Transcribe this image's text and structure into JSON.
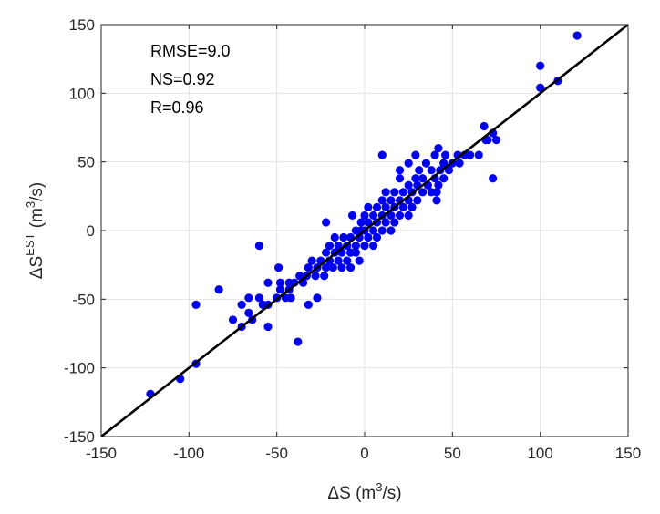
{
  "chart_data": {
    "type": "scatter",
    "title": "",
    "xlabel": {
      "base": "ΔS",
      "units_pre": "(m",
      "units_sup": "3",
      "units_post": "/s)"
    },
    "ylabel": {
      "base": "ΔS",
      "sup": "EST",
      "units_pre": "(m",
      "units_sup": "3",
      "units_post": "/s)"
    },
    "xlim": [
      -150,
      150
    ],
    "ylim": [
      -150,
      150
    ],
    "xticks": [
      -150,
      -100,
      -50,
      0,
      50,
      100,
      150
    ],
    "yticks": [
      -150,
      -100,
      -50,
      0,
      50,
      100,
      150
    ],
    "grid": true,
    "colors": {
      "points": "#0000ee",
      "line": "#000000",
      "grid": "#e2e2e2",
      "axes": "#262626"
    },
    "reference_line": {
      "name": "1:1 line",
      "from": [
        -150,
        -150
      ],
      "to": [
        150,
        150
      ]
    },
    "annotations": [
      "RMSE=9.0",
      "NS=0.92",
      "R=0.96"
    ],
    "points": [
      [
        -122,
        -119
      ],
      [
        -105,
        -108
      ],
      [
        -96,
        -97
      ],
      [
        -96,
        -54
      ],
      [
        -83,
        -43
      ],
      [
        -75,
        -65
      ],
      [
        -70,
        -70
      ],
      [
        -70,
        -54
      ],
      [
        -66,
        -60
      ],
      [
        -66,
        -49
      ],
      [
        -64,
        -65
      ],
      [
        -60,
        -11
      ],
      [
        -60,
        -49
      ],
      [
        -58,
        -54
      ],
      [
        -55,
        -70
      ],
      [
        -55,
        -54
      ],
      [
        -55,
        -38
      ],
      [
        -50,
        -49
      ],
      [
        -49,
        -27
      ],
      [
        -48,
        -43
      ],
      [
        -48,
        -38
      ],
      [
        -45,
        -49
      ],
      [
        -43,
        -43
      ],
      [
        -43,
        -38
      ],
      [
        -42,
        -49
      ],
      [
        -40,
        -38
      ],
      [
        -38,
        -81
      ],
      [
        -37,
        -33
      ],
      [
        -35,
        -38
      ],
      [
        -33,
        -33
      ],
      [
        -32,
        -54
      ],
      [
        -32,
        -27
      ],
      [
        -30,
        -22
      ],
      [
        -28,
        -33
      ],
      [
        -27,
        -49
      ],
      [
        -27,
        -27
      ],
      [
        -25,
        -22
      ],
      [
        -23,
        -33
      ],
      [
        -22,
        6
      ],
      [
        -22,
        -27
      ],
      [
        -22,
        -16
      ],
      [
        -20,
        -22
      ],
      [
        -20,
        -11
      ],
      [
        -18,
        -27
      ],
      [
        -17,
        -16
      ],
      [
        -17,
        -5
      ],
      [
        -15,
        -22
      ],
      [
        -15,
        -11
      ],
      [
        -13,
        -27
      ],
      [
        -13,
        -16
      ],
      [
        -12,
        -5
      ],
      [
        -10,
        -22
      ],
      [
        -10,
        -11
      ],
      [
        -8,
        -27
      ],
      [
        -8,
        -16
      ],
      [
        -8,
        -5
      ],
      [
        -7,
        11
      ],
      [
        -5,
        -16
      ],
      [
        -5,
        -11
      ],
      [
        -5,
        0
      ],
      [
        -3,
        -22
      ],
      [
        -3,
        -5
      ],
      [
        -2,
        0
      ],
      [
        -2,
        6
      ],
      [
        0,
        -11
      ],
      [
        0,
        0
      ],
      [
        0,
        11
      ],
      [
        2,
        -5
      ],
      [
        2,
        6
      ],
      [
        2,
        17
      ],
      [
        5,
        -11
      ],
      [
        5,
        0
      ],
      [
        5,
        11
      ],
      [
        7,
        -5
      ],
      [
        7,
        6
      ],
      [
        7,
        17
      ],
      [
        10,
        0
      ],
      [
        10,
        11
      ],
      [
        10,
        22
      ],
      [
        10,
        55
      ],
      [
        12,
        6
      ],
      [
        12,
        17
      ],
      [
        12,
        28
      ],
      [
        15,
        0
      ],
      [
        15,
        11
      ],
      [
        15,
        22
      ],
      [
        17,
        6
      ],
      [
        17,
        17
      ],
      [
        17,
        28
      ],
      [
        20,
        11
      ],
      [
        20,
        22
      ],
      [
        20,
        38
      ],
      [
        20,
        44
      ],
      [
        22,
        17
      ],
      [
        22,
        28
      ],
      [
        25,
        11
      ],
      [
        25,
        22
      ],
      [
        25,
        33
      ],
      [
        25,
        49
      ],
      [
        27,
        17
      ],
      [
        27,
        28
      ],
      [
        29,
        38
      ],
      [
        29,
        55
      ],
      [
        30,
        22
      ],
      [
        30,
        33
      ],
      [
        31,
        44
      ],
      [
        33,
        28
      ],
      [
        33,
        38
      ],
      [
        35,
        49
      ],
      [
        36,
        33
      ],
      [
        38,
        28
      ],
      [
        38,
        44
      ],
      [
        40,
        38
      ],
      [
        40,
        55
      ],
      [
        41,
        22
      ],
      [
        41,
        28
      ],
      [
        42,
        33
      ],
      [
        42,
        60
      ],
      [
        43,
        44
      ],
      [
        45,
        49
      ],
      [
        45,
        38
      ],
      [
        46,
        55
      ],
      [
        48,
        44
      ],
      [
        50,
        49
      ],
      [
        53,
        55
      ],
      [
        54,
        49
      ],
      [
        57,
        55
      ],
      [
        60,
        55
      ],
      [
        65,
        55
      ],
      [
        68,
        76
      ],
      [
        69,
        66
      ],
      [
        70,
        66
      ],
      [
        73,
        71
      ],
      [
        73,
        38
      ],
      [
        75,
        66
      ],
      [
        100,
        120
      ],
      [
        100,
        104
      ],
      [
        110,
        109
      ],
      [
        121,
        142
      ]
    ]
  }
}
